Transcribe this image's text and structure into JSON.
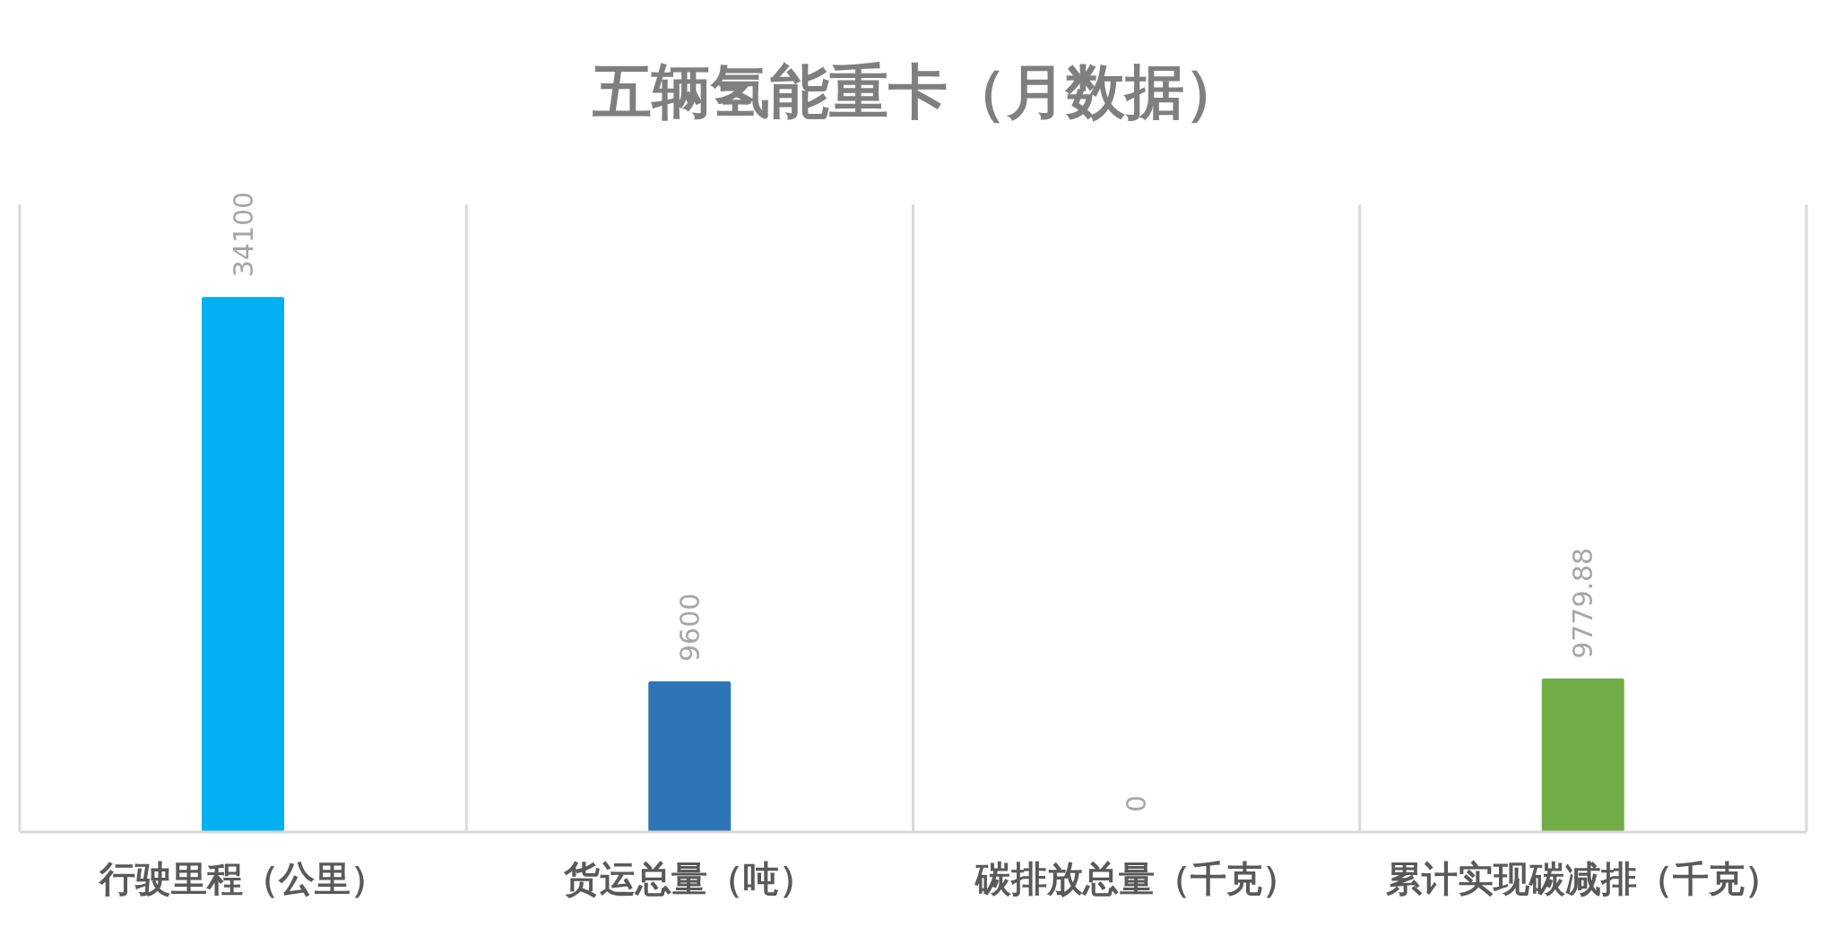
{
  "chart_data": {
    "type": "bar",
    "title": "五辆氢能重卡（月数据）",
    "categories": [
      "行驶里程（公里）",
      "货运总量（吨）",
      "碳排放总量（千克）",
      "累计实现碳减排（千克）"
    ],
    "values": [
      34100,
      9600,
      0,
      9779.88
    ],
    "colors": [
      "#00b0f0",
      "#2e75b6",
      "#a5a5a5",
      "#70ad47"
    ],
    "ylim": [
      0,
      40000
    ],
    "grid": "x",
    "data_labels": true,
    "tick_labels": "x"
  }
}
